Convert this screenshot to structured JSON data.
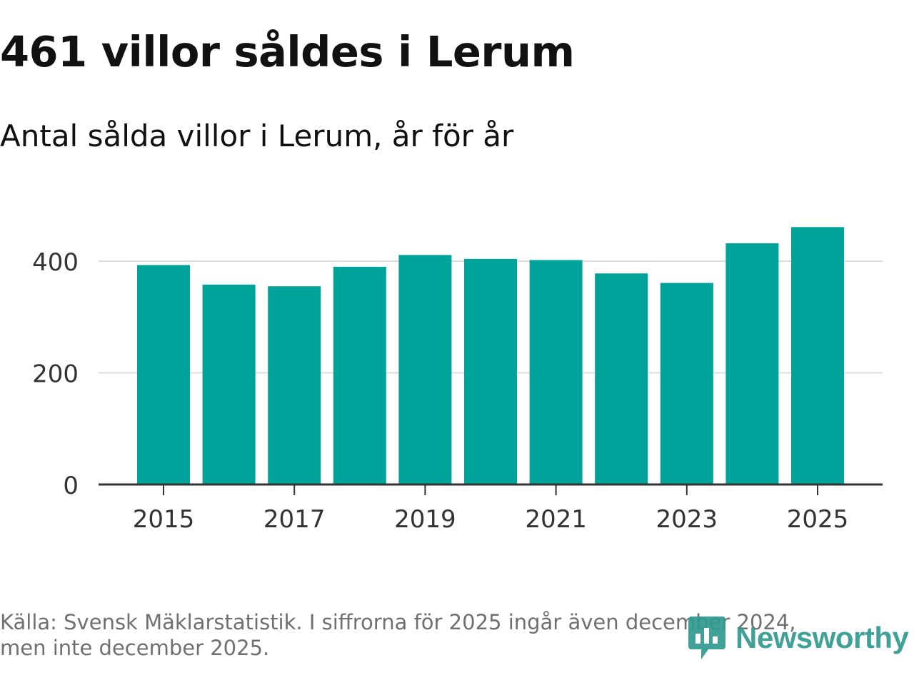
{
  "header": {
    "title": "461 villor såldes i Lerum",
    "subtitle": "Antal sålda villor i Lerum, år för år"
  },
  "footer": {
    "source_line1": "Källa: Svensk Mäklarstatistik. I siffrorna för 2025 ingår även december 2024,",
    "source_line2": "men inte december 2025."
  },
  "logo": {
    "text": "Newsworthy",
    "icon": "newsworthy-logo-icon",
    "color": "#2f9a8f"
  },
  "chart_data": {
    "type": "bar",
    "title": "461 villor såldes i Lerum",
    "subtitle": "Antal sålda villor i Lerum, år för år",
    "xlabel": "",
    "ylabel": "",
    "categories": [
      "2015",
      "2016",
      "2017",
      "2018",
      "2019",
      "2020",
      "2021",
      "2022",
      "2023",
      "2024",
      "2025"
    ],
    "values": [
      393,
      358,
      355,
      390,
      411,
      404,
      402,
      378,
      361,
      432,
      461
    ],
    "x_tick_labels": [
      "2015",
      "2017",
      "2019",
      "2021",
      "2023",
      "2025"
    ],
    "y_ticks": [
      0,
      200,
      400
    ],
    "y_tick_labels": [
      "0",
      "200",
      "400"
    ],
    "ylim": [
      0,
      461
    ],
    "grid": true,
    "bar_color": "#00a39a",
    "grid_color": "#dddddd",
    "axis_color": "#333333"
  }
}
